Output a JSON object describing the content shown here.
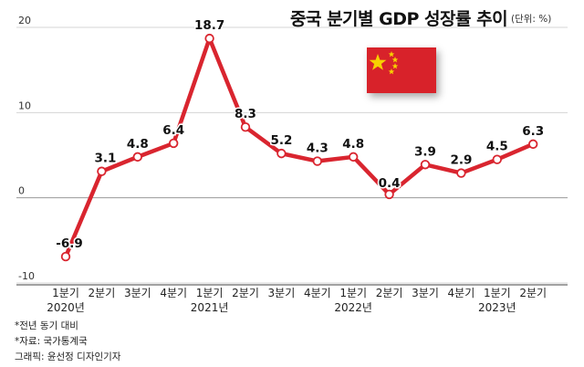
{
  "title": "중국 분기별 GDP 성장률 추이",
  "unit_note": "(단위: %)",
  "notes": [
    "*전년 동기 대비",
    "*자료: 국가통계국",
    "그래픽: 윤선정 디자인기자"
  ],
  "colors": {
    "line": "#d9252f",
    "flag_red": "#d8222a",
    "flag_star": "#f7d100"
  },
  "chart_data": {
    "type": "line",
    "title": "중국 분기별 GDP 성장률 추이",
    "ylabel": "",
    "xlabel": "",
    "ylim": [
      -10,
      20
    ],
    "yticks": [
      -10,
      0,
      10,
      20
    ],
    "grid": true,
    "categories": [
      "1분기",
      "2분기",
      "3분기",
      "4분기",
      "1분기",
      "2분기",
      "3분기",
      "4분기",
      "1분기",
      "2분기",
      "3분기",
      "4분기",
      "1분기",
      "2분기"
    ],
    "year_labels": [
      {
        "label": "2020년",
        "index": 0
      },
      {
        "label": "2021년",
        "index": 4
      },
      {
        "label": "2022년",
        "index": 8
      },
      {
        "label": "2023년",
        "index": 12
      }
    ],
    "series": [
      {
        "values": [
          -6.9,
          3.1,
          4.8,
          6.4,
          18.7,
          8.3,
          5.2,
          4.3,
          4.8,
          0.4,
          3.9,
          2.9,
          4.5,
          6.3
        ]
      }
    ],
    "data_labels": [
      "-6.9",
      "3.1",
      "4.8",
      "6.4",
      "18.7",
      "8.3",
      "5.2",
      "4.3",
      "4.8",
      "0.4",
      "3.9",
      "2.9",
      "4.5",
      "6.3"
    ]
  }
}
